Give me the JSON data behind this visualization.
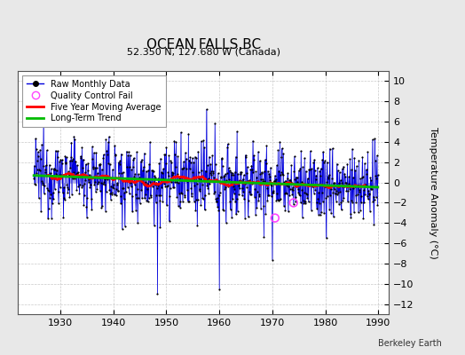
{
  "title": "OCEAN FALLS,BC",
  "subtitle": "52.350 N, 127.680 W (Canada)",
  "ylabel": "Temperature Anomaly (°C)",
  "credit": "Berkeley Earth",
  "xlim": [
    1922,
    1992
  ],
  "ylim": [
    -13,
    11
  ],
  "yticks": [
    -12,
    -10,
    -8,
    -6,
    -4,
    -2,
    0,
    2,
    4,
    6,
    8,
    10
  ],
  "xticks": [
    1930,
    1940,
    1950,
    1960,
    1970,
    1980,
    1990
  ],
  "bar_color": "#aaaaee",
  "line_color": "#0000dd",
  "dot_color": "#000000",
  "ma_color": "#ff0000",
  "trend_color": "#00bb00",
  "qc_color": "#ff44ff",
  "plot_bg": "#ffffff",
  "outer_bg": "#e8e8e8",
  "seed": 12345,
  "n_years": 65,
  "start_year": 1925,
  "qc_times": [
    1970.5,
    1974.0
  ],
  "qc_vals": [
    -3.5,
    -2.0
  ]
}
